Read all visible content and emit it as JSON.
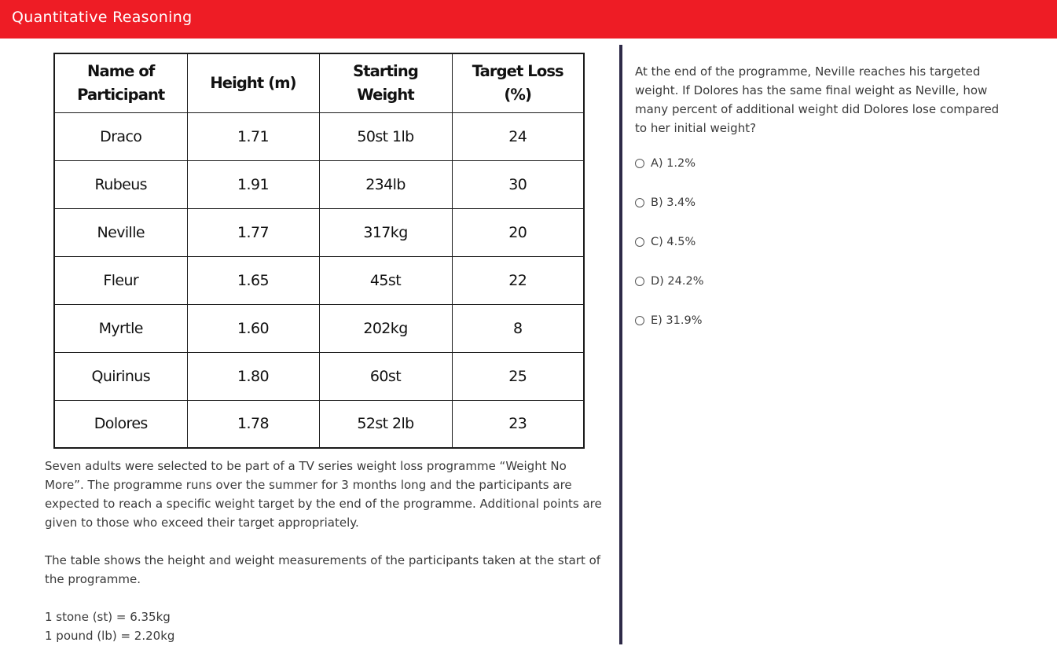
{
  "header": {
    "title": "Quantitative Reasoning"
  },
  "table": {
    "headers": [
      "Name of\nParticipant",
      "Height (m)",
      "Starting\nWeight",
      "Target Loss\n(%)"
    ],
    "rows": [
      [
        "Draco",
        "1.71",
        "50st 1lb",
        "24"
      ],
      [
        "Rubeus",
        "1.91",
        "234lb",
        "30"
      ],
      [
        "Neville",
        "1.77",
        "317kg",
        "20"
      ],
      [
        "Fleur",
        "1.65",
        "45st",
        "22"
      ],
      [
        "Myrtle",
        "1.60",
        "202kg",
        "8"
      ],
      [
        "Quirinus",
        "1.80",
        "60st",
        "25"
      ],
      [
        "Dolores",
        "1.78",
        "52st 2lb",
        "23"
      ]
    ]
  },
  "passage": {
    "paragraph1": "Seven adults were selected to be part of a TV series weight loss programme “Weight No More”. The programme runs over the summer for 3 months long and the participants are expected to reach a specific weight target by the end of the programme. Additional points are given to those who exceed their target appropriately.",
    "paragraph2": "The table shows the height and weight measurements of the participants taken at the start of the programme.",
    "conversion1": "1 stone (st) = 6.35kg",
    "conversion2": "1 pound (lb) = 2.20kg"
  },
  "question": {
    "text": "At the end of the programme, Neville reaches his targeted weight. If Dolores has the same final weight as Neville, how many percent of additional weight did Dolores lose compared to her initial weight?",
    "options": [
      "A) 1.2%",
      "B) 3.4%",
      "C) 4.5%",
      "D) 24.2%",
      "E) 31.9%"
    ]
  },
  "colors": {
    "header_bg": "#ee1c25",
    "divider": "#2e2a48"
  }
}
